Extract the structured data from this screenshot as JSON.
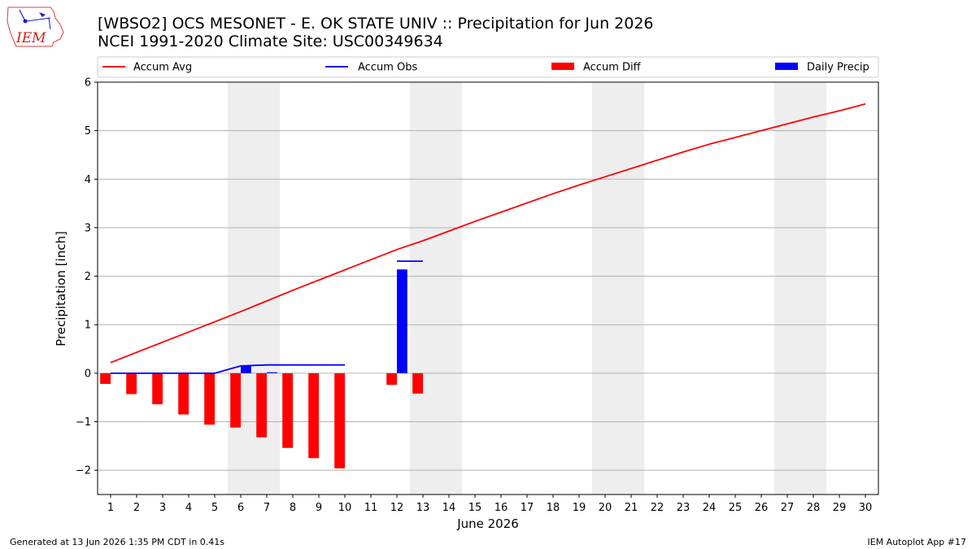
{
  "header": {
    "title_line1": "[WBSO2] OCS MESONET - E. OK STATE UNIV :: Precipitation for Jun 2026",
    "title_line2": "NCEI 1991-2020 Climate Site: USC00349634",
    "logo_text": "IEM"
  },
  "footer": {
    "left": "Generated at 13 Jun 2026 1:35 PM CDT in 0.41s",
    "right": "IEM Autoplot App #17"
  },
  "colors": {
    "avg": "#ff0000",
    "obs": "#0000ff",
    "diff": "#ff0000",
    "daily": "#0000ff",
    "weekend": "#eeeeee",
    "grid": "#b0b0b0"
  },
  "chart_data": {
    "type": "bar",
    "xlabel": "June 2026",
    "ylabel": "Precipitation [inch]",
    "xlim": [
      0.5,
      30.5
    ],
    "ylim": [
      -2.5,
      6.0
    ],
    "yticks": [
      -2,
      -1,
      0,
      1,
      2,
      3,
      4,
      5,
      6
    ],
    "ytick_labels": [
      "−2",
      "−1",
      "0",
      "1",
      "2",
      "3",
      "4",
      "5",
      "6"
    ],
    "days": [
      1,
      2,
      3,
      4,
      5,
      6,
      7,
      8,
      9,
      10,
      11,
      12,
      13,
      14,
      15,
      16,
      17,
      18,
      19,
      20,
      21,
      22,
      23,
      24,
      25,
      26,
      27,
      28,
      29,
      30
    ],
    "weekend_spans": [
      [
        5.5,
        7.5
      ],
      [
        12.5,
        14.5
      ],
      [
        19.5,
        21.5
      ],
      [
        26.5,
        28.5
      ]
    ],
    "grid": "horizontal",
    "legend": {
      "placement": "top",
      "entries": [
        "Accum Avg",
        "Accum Obs",
        "Accum Diff",
        "Daily Precip"
      ]
    },
    "series": [
      {
        "name": "Accum Avg",
        "kind": "line",
        "x": [
          1,
          2,
          3,
          4,
          5,
          6,
          7,
          8,
          9,
          10,
          11,
          12,
          13,
          14,
          15,
          16,
          17,
          18,
          19,
          20,
          21,
          22,
          23,
          24,
          25,
          26,
          27,
          28,
          29,
          30
        ],
        "values": [
          0.22,
          0.43,
          0.64,
          0.85,
          1.06,
          1.27,
          1.49,
          1.71,
          1.92,
          2.13,
          2.34,
          2.55,
          2.73,
          2.93,
          3.13,
          3.32,
          3.51,
          3.7,
          3.88,
          4.05,
          4.22,
          4.39,
          4.56,
          4.72,
          4.86,
          5.0,
          5.14,
          5.28,
          5.41,
          5.55
        ]
      },
      {
        "name": "Accum Obs",
        "kind": "line",
        "x": [
          1,
          2,
          3,
          4,
          5,
          6,
          7,
          8,
          9,
          10
        ],
        "values": [
          0.0,
          0.0,
          0.0,
          0.0,
          0.0,
          0.15,
          0.17,
          0.17,
          0.17,
          0.17
        ]
      },
      {
        "name": "Accum Obs",
        "kind": "line",
        "x": [
          12,
          13
        ],
        "values": [
          2.31,
          2.31
        ]
      },
      {
        "name": "Accum Diff",
        "kind": "bar",
        "x": [
          1,
          2,
          3,
          4,
          5,
          6,
          7,
          8,
          9,
          10,
          12,
          13
        ],
        "values": [
          -0.22,
          -0.43,
          -0.64,
          -0.85,
          -1.06,
          -1.12,
          -1.32,
          -1.54,
          -1.75,
          -1.96,
          -0.24,
          -0.42
        ]
      },
      {
        "name": "Daily Precip",
        "kind": "bar",
        "x": [
          6,
          7,
          12
        ],
        "values": [
          0.15,
          0.02,
          2.14
        ]
      }
    ]
  }
}
